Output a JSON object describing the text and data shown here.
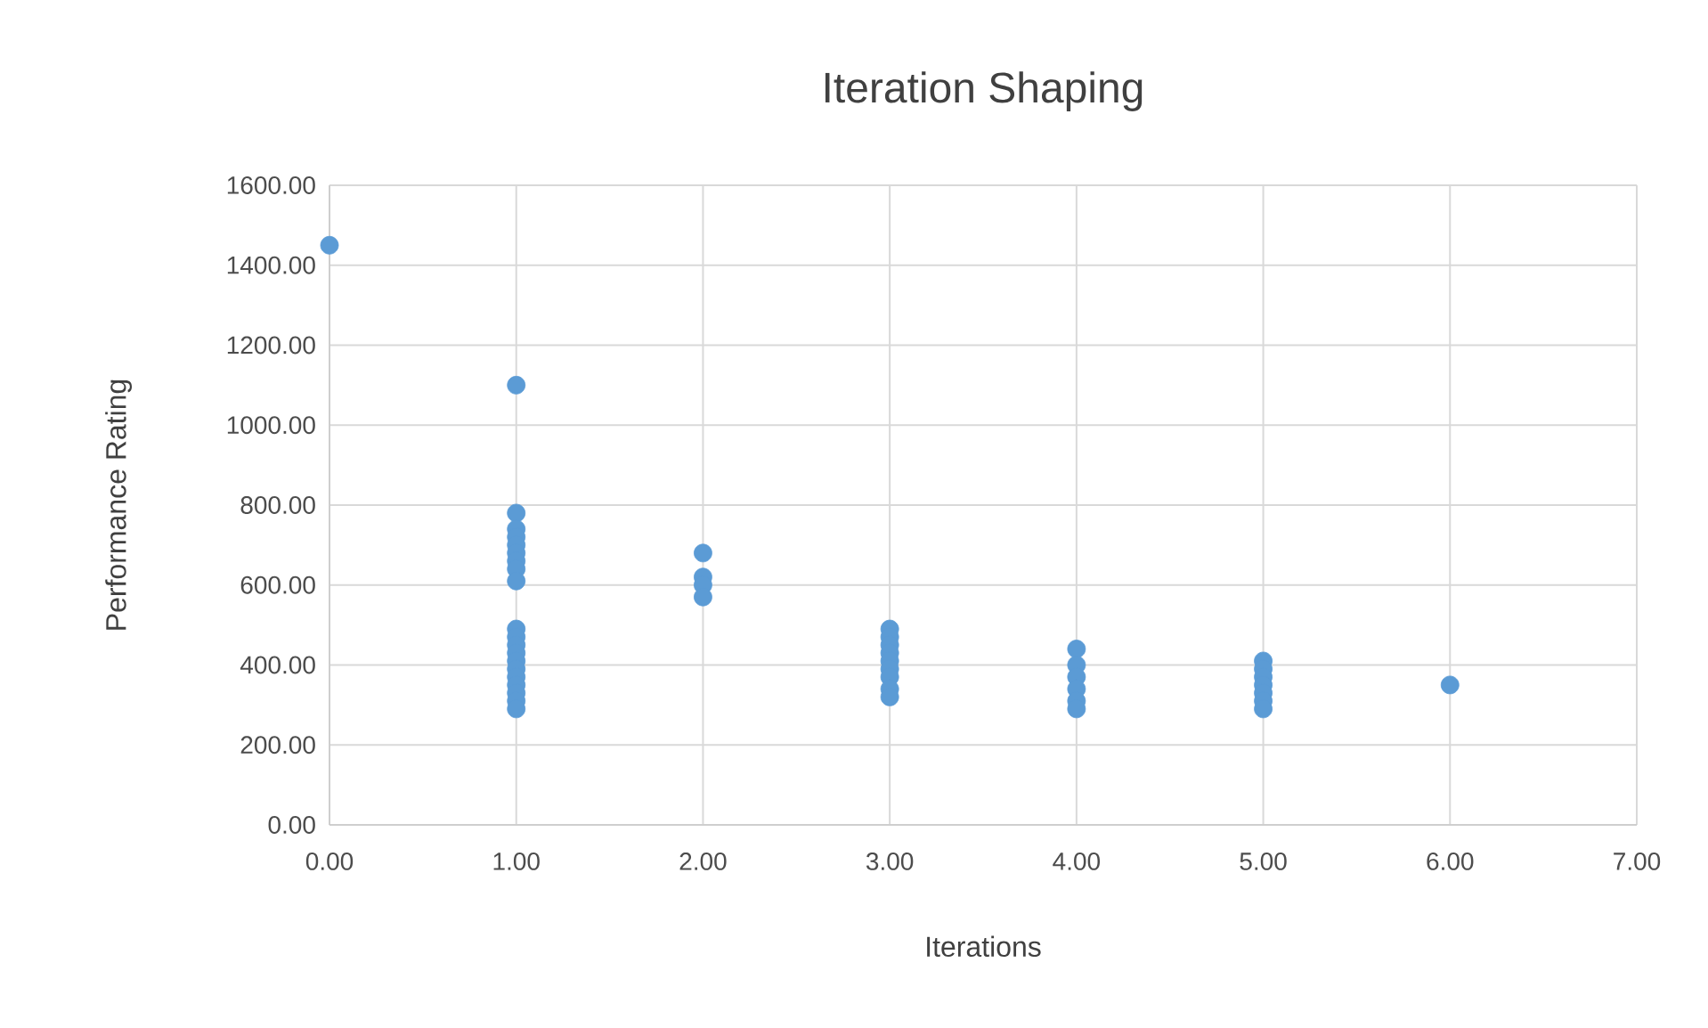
{
  "chart_data": {
    "type": "scatter",
    "title": "Iteration Shaping",
    "xlabel": "Iterations",
    "ylabel": "Performance Rating",
    "x": [
      0,
      1,
      1,
      1,
      1,
      1,
      1,
      1,
      1,
      1,
      1,
      1,
      1,
      1,
      1,
      1,
      1,
      1,
      1,
      1,
      1,
      2,
      2,
      2,
      2,
      3,
      3,
      3,
      3,
      3,
      3,
      3,
      3,
      3,
      4,
      4,
      4,
      4,
      4,
      4,
      5,
      5,
      5,
      5,
      5,
      5,
      5,
      6
    ],
    "values": [
      1450,
      1100,
      780,
      740,
      720,
      700,
      680,
      660,
      640,
      610,
      490,
      470,
      450,
      430,
      410,
      390,
      370,
      350,
      330,
      310,
      290,
      680,
      620,
      600,
      570,
      490,
      470,
      450,
      430,
      410,
      390,
      370,
      340,
      320,
      440,
      400,
      370,
      340,
      310,
      290,
      410,
      390,
      370,
      350,
      330,
      310,
      290,
      350
    ],
    "color": "#5b9bd5",
    "marker": "circle",
    "grid": true,
    "xlim": [
      0,
      7
    ],
    "ylim": [
      0,
      1600
    ],
    "xticks": [
      {
        "value": 0,
        "label": "0.00"
      },
      {
        "value": 1,
        "label": "1.00"
      },
      {
        "value": 2,
        "label": "2.00"
      },
      {
        "value": 3,
        "label": "3.00"
      },
      {
        "value": 4,
        "label": "4.00"
      },
      {
        "value": 5,
        "label": "5.00"
      },
      {
        "value": 6,
        "label": "6.00"
      },
      {
        "value": 7,
        "label": "7.00"
      }
    ],
    "yticks": [
      {
        "value": 0,
        "label": "0.00"
      },
      {
        "value": 200,
        "label": "200.00"
      },
      {
        "value": 400,
        "label": "400.00"
      },
      {
        "value": 600,
        "label": "600.00"
      },
      {
        "value": 800,
        "label": "800.00"
      },
      {
        "value": 1000,
        "label": "1000.00"
      },
      {
        "value": 1200,
        "label": "1200.00"
      },
      {
        "value": 1400,
        "label": "1400.00"
      },
      {
        "value": 1600,
        "label": "1600.00"
      }
    ]
  }
}
